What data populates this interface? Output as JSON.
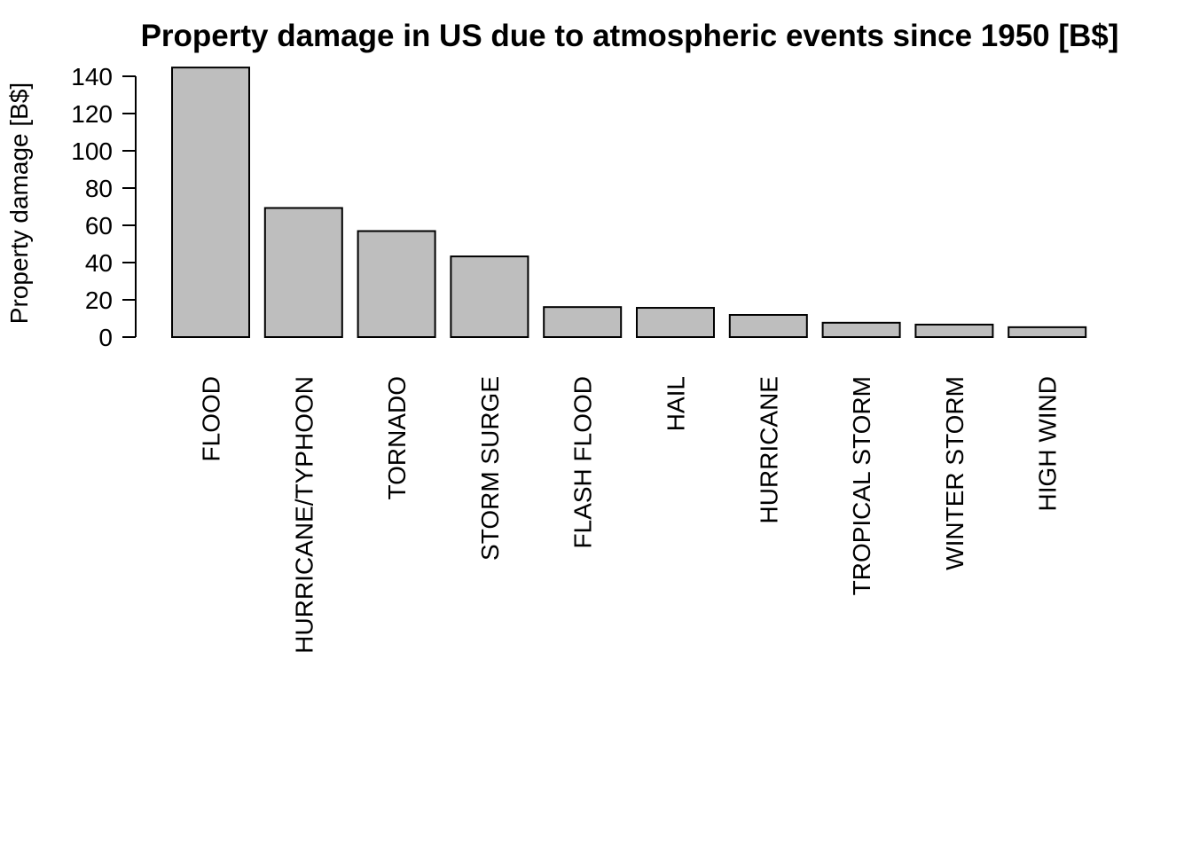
{
  "chart_data": {
    "type": "bar",
    "title": "Property damage in US due to atmospheric events since 1950 [B$]",
    "xlabel": "",
    "ylabel": "Property damage [B$]",
    "categories": [
      "FLOOD",
      "HURRICANE/TYPHOON",
      "TORNADO",
      "STORM SURGE",
      "FLASH FLOOD",
      "HAIL",
      "HURRICANE",
      "TROPICAL STORM",
      "WINTER STORM",
      "HIGH WIND"
    ],
    "values": [
      144.7,
      69.3,
      56.9,
      43.3,
      16.1,
      15.7,
      11.9,
      7.7,
      6.7,
      5.3
    ],
    "yticks": [
      0,
      20,
      40,
      60,
      80,
      100,
      120,
      140
    ],
    "ylim": [
      0,
      145
    ],
    "grid": false,
    "legend": "none",
    "colors": {
      "bar_fill": "#bebebe",
      "bar_stroke": "#000000"
    }
  }
}
